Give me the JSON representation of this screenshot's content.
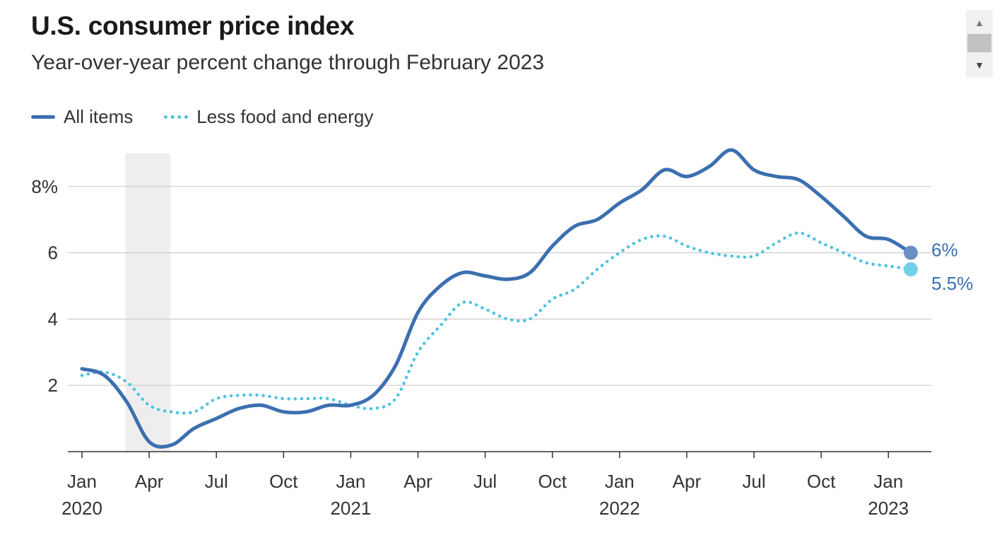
{
  "title": "U.S. consumer price index",
  "subtitle": "Year-over-year percent change through February 2023",
  "colors": {
    "all_items": "#3b6fb0",
    "core": "#4fc3df",
    "grid": "#cccccc",
    "recession": "#eeeeee",
    "end_label": "#3b6fb0"
  },
  "scrollbar": {
    "up_icon": "triangle-up-icon",
    "down_icon": "triangle-down-icon"
  },
  "chart_data": {
    "type": "line",
    "title": "U.S. consumer price index",
    "subtitle": "Year-over-year percent change through February 2023",
    "xlabel": "",
    "ylabel": "",
    "ylim": [
      0,
      9
    ],
    "grid": true,
    "legend_position": "top-left",
    "y_ticks": [
      {
        "value": 2,
        "label": "2"
      },
      {
        "value": 4,
        "label": "4"
      },
      {
        "value": 6,
        "label": "6"
      },
      {
        "value": 8,
        "label": "8%"
      }
    ],
    "x_ticks": [
      {
        "month_index": 0,
        "label": "Jan",
        "year": "2020"
      },
      {
        "month_index": 3,
        "label": "Apr",
        "year": ""
      },
      {
        "month_index": 6,
        "label": "Jul",
        "year": ""
      },
      {
        "month_index": 9,
        "label": "Oct",
        "year": ""
      },
      {
        "month_index": 12,
        "label": "Jan",
        "year": "2021"
      },
      {
        "month_index": 15,
        "label": "Apr",
        "year": ""
      },
      {
        "month_index": 18,
        "label": "Jul",
        "year": ""
      },
      {
        "month_index": 21,
        "label": "Oct",
        "year": ""
      },
      {
        "month_index": 24,
        "label": "Jan",
        "year": "2022"
      },
      {
        "month_index": 27,
        "label": "Apr",
        "year": ""
      },
      {
        "month_index": 30,
        "label": "Jul",
        "year": ""
      },
      {
        "month_index": 33,
        "label": "Oct",
        "year": ""
      },
      {
        "month_index": 36,
        "label": "Jan",
        "year": "2023"
      }
    ],
    "recession": {
      "start_month_index": 2,
      "end_month_index": 4
    },
    "series": [
      {
        "name": "All items",
        "style": "solid",
        "values": [
          2.5,
          2.3,
          1.5,
          0.3,
          0.2,
          0.7,
          1.0,
          1.3,
          1.4,
          1.2,
          1.2,
          1.4,
          1.4,
          1.7,
          2.6,
          4.2,
          5.0,
          5.4,
          5.3,
          5.2,
          5.4,
          6.2,
          6.8,
          7.0,
          7.5,
          7.9,
          8.5,
          8.3,
          8.6,
          9.1,
          8.5,
          8.3,
          8.2,
          7.7,
          7.1,
          6.5,
          6.4,
          6.0
        ],
        "end_label": "6%"
      },
      {
        "name": "Less food and energy",
        "style": "dotted",
        "values": [
          2.3,
          2.4,
          2.1,
          1.4,
          1.2,
          1.2,
          1.6,
          1.7,
          1.7,
          1.6,
          1.6,
          1.6,
          1.4,
          1.3,
          1.6,
          3.0,
          3.8,
          4.5,
          4.3,
          4.0,
          4.0,
          4.6,
          4.9,
          5.5,
          6.0,
          6.4,
          6.5,
          6.2,
          6.0,
          5.9,
          5.9,
          6.3,
          6.6,
          6.3,
          6.0,
          5.7,
          5.6,
          5.5
        ],
        "end_label": "5.5%"
      }
    ]
  }
}
